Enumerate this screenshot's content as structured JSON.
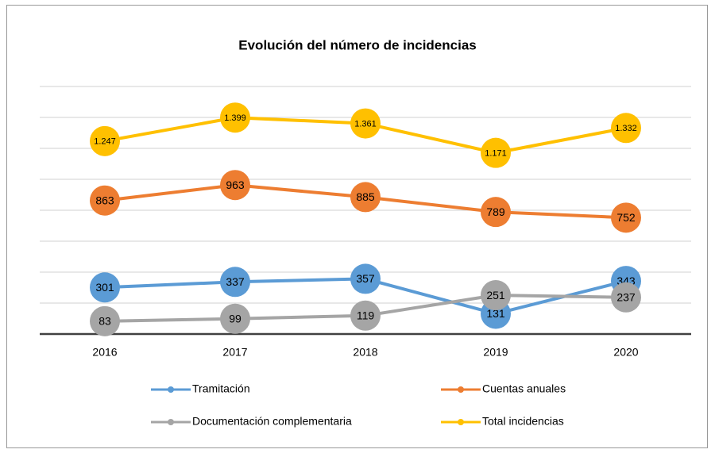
{
  "chart_data": {
    "type": "line",
    "title": "Evolución del número de incidencias",
    "categories": [
      "2016",
      "2017",
      "2018",
      "2019",
      "2020"
    ],
    "series": [
      {
        "name": "Tramitación",
        "color": "#5b9bd5",
        "values": [
          301,
          337,
          357,
          131,
          343
        ]
      },
      {
        "name": "Cuentas anuales",
        "color": "#ed7d31",
        "values": [
          863,
          963,
          885,
          789,
          752
        ]
      },
      {
        "name": "Documentación complementaria",
        "color": "#a5a5a5",
        "values": [
          83,
          99,
          119,
          251,
          237
        ]
      },
      {
        "name": "Total incidencias",
        "color": "#ffc000",
        "values": [
          1247,
          1399,
          1361,
          1171,
          1332
        ],
        "value_labels": [
          "1.247",
          "1.399",
          "1.361",
          "1.171",
          "1.332"
        ]
      }
    ],
    "ylim": [
      0,
      1600
    ],
    "yticks": [
      0,
      200,
      400,
      600,
      800,
      1000,
      1200,
      1400,
      1600
    ],
    "grid": true
  }
}
